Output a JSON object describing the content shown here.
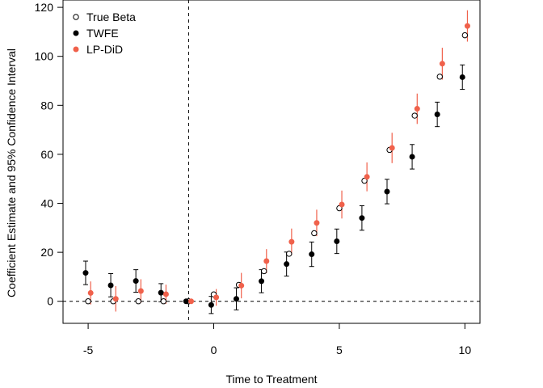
{
  "chart_data": {
    "type": "scatter",
    "xlabel": "Time to Treatment",
    "ylabel": "Coefficient Estimate and 95% Confidence Interval",
    "xlim": [
      -6.0,
      10.6
    ],
    "ylim": [
      -9,
      123
    ],
    "xticks": [
      -5,
      0,
      5,
      10
    ],
    "xtick_labels": [
      "-5",
      "0",
      "5",
      "10"
    ],
    "yticks": [
      0,
      20,
      40,
      60,
      80,
      100,
      120
    ],
    "ytick_labels": [
      "0",
      "20",
      "40",
      "60",
      "80",
      "100",
      "120"
    ],
    "grid": false,
    "legend_position": "top-left",
    "reference_lines": {
      "vertical_x": -1,
      "horizontal_y": 0,
      "style": "dashed"
    },
    "series": [
      {
        "name": "True Beta",
        "marker": "open-circle",
        "color": "#000000",
        "x": [
          -5,
          -4,
          -3,
          -2,
          -1,
          0,
          1,
          2,
          3,
          4,
          5,
          6,
          7,
          8,
          9,
          10
        ],
        "y": [
          0,
          0,
          0,
          0,
          0,
          2.8,
          6.7,
          12.3,
          19.4,
          27.8,
          38.0,
          49.2,
          61.8,
          75.8,
          91.7,
          108.6
        ]
      },
      {
        "name": "TWFE",
        "marker": "filled-circle",
        "color": "#000000",
        "x": [
          -5.1,
          -4.1,
          -3.1,
          -2.1,
          -1.1,
          -0.1,
          0.9,
          1.9,
          2.9,
          3.9,
          4.9,
          5.9,
          6.9,
          7.9,
          8.9,
          9.9
        ],
        "y": [
          11.6,
          6.5,
          8.3,
          3.5,
          0,
          -1.5,
          1.0,
          8.2,
          15.2,
          19.2,
          24.5,
          34.0,
          44.8,
          59.0,
          76.3,
          91.5
        ],
        "lower": [
          6.8,
          1.8,
          3.7,
          -0.2,
          0,
          -5.0,
          -3.5,
          3.5,
          10.3,
          14.2,
          19.5,
          29.0,
          39.8,
          54.0,
          71.3,
          86.5
        ],
        "upper": [
          16.4,
          11.3,
          12.9,
          7.2,
          0,
          2.0,
          5.5,
          12.9,
          20.1,
          24.2,
          29.5,
          39.0,
          49.8,
          64.0,
          81.3,
          96.5
        ]
      },
      {
        "name": "LP-DiD",
        "marker": "filled-circle",
        "color": "#f0614b",
        "x": [
          -4.9,
          -3.9,
          -2.9,
          -1.9,
          -0.9,
          0.1,
          1.1,
          2.1,
          3.1,
          4.1,
          5.1,
          6.1,
          7.1,
          8.1,
          9.1,
          10.1
        ],
        "y": [
          3.4,
          1.0,
          4.2,
          2.9,
          0,
          1.6,
          6.4,
          16.4,
          24.3,
          32.0,
          39.5,
          50.8,
          62.6,
          78.6,
          97.0,
          112.4
        ],
        "lower": [
          -1.3,
          -4.2,
          -0.6,
          -1.0,
          0,
          -1.8,
          1.2,
          11.5,
          18.9,
          26.6,
          33.8,
          44.9,
          56.4,
          72.4,
          90.5,
          106.0
        ],
        "upper": [
          8.1,
          6.2,
          9.0,
          6.8,
          0,
          5.0,
          11.6,
          21.3,
          29.7,
          37.4,
          45.2,
          56.7,
          68.8,
          84.8,
          103.5,
          118.8
        ]
      }
    ]
  }
}
